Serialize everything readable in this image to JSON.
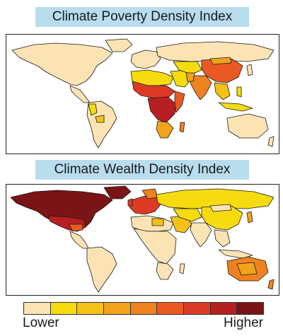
{
  "maps": [
    {
      "title": "Climate Poverty Density Index"
    },
    {
      "title": "Climate Wealth Density Index"
    }
  ],
  "legend": {
    "low_label": "Lower",
    "high_label": "Higher",
    "colors": [
      "#fbe3b4",
      "#f6dc0f",
      "#f5c119",
      "#f2a21c",
      "#ef8220",
      "#e95a23",
      "#dc3a24",
      "#b81f21",
      "#7a1416"
    ]
  },
  "palette": {
    "title_bg": "#b9dcef",
    "ocean": "#ffffff",
    "border": "#1a1a1a"
  }
}
